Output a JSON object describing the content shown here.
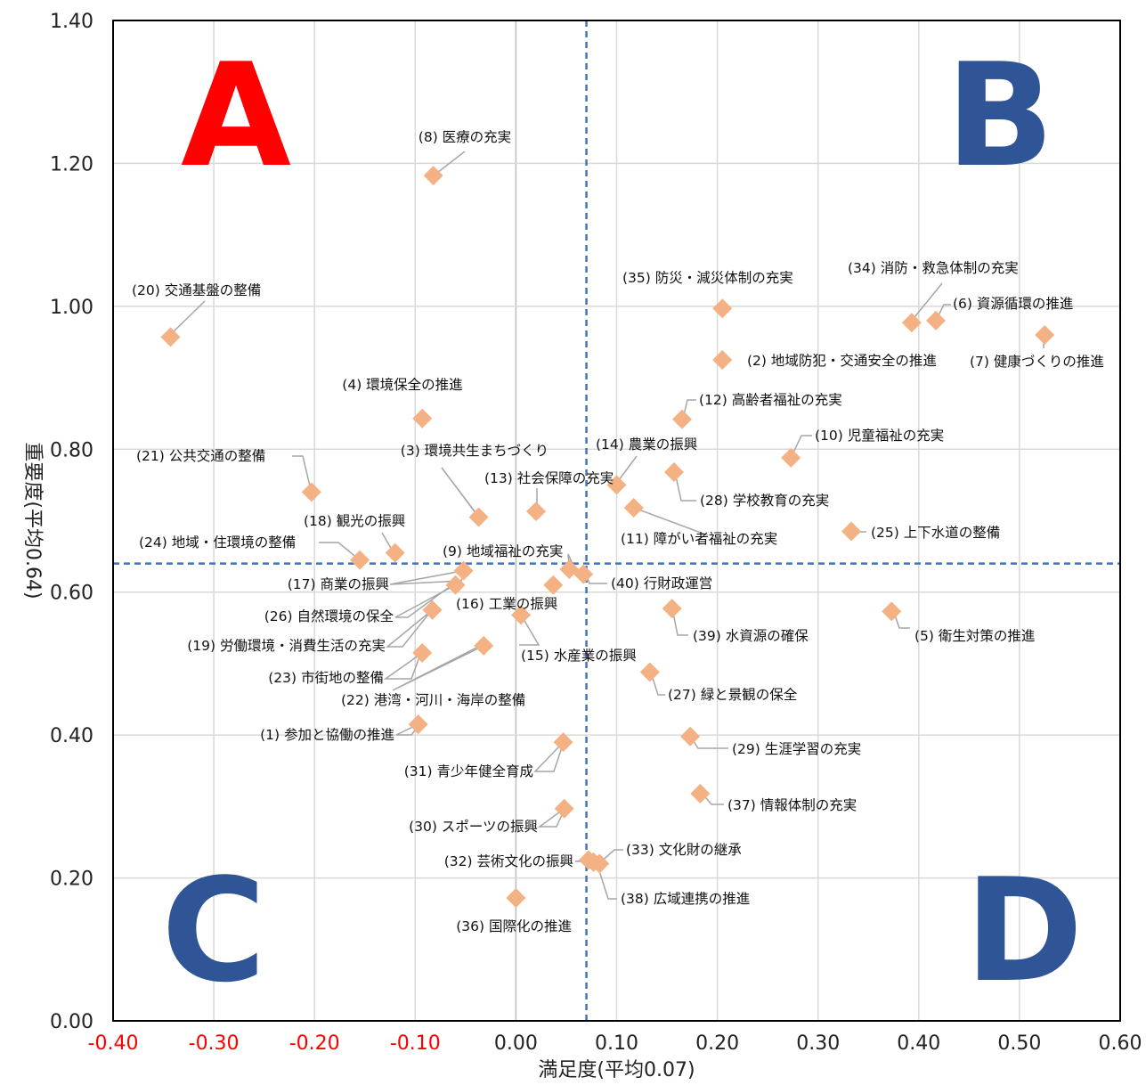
{
  "chart_data": {
    "type": "scatter",
    "title": "",
    "xlabel": "満足度(平均0.07)",
    "ylabel": "重要度(平均0.64)",
    "xlim": [
      -0.4,
      0.6
    ],
    "ylim": [
      0.0,
      1.4
    ],
    "x_ticks": [
      "-0.40",
      "-0.30",
      "-0.20",
      "-0.10",
      "0.00",
      "0.10",
      "0.20",
      "0.30",
      "0.40",
      "0.50",
      "0.60"
    ],
    "y_ticks": [
      "0.00",
      "0.20",
      "0.40",
      "0.60",
      "0.80",
      "1.00",
      "1.20",
      "1.40"
    ],
    "grid": true,
    "mean_x": 0.07,
    "mean_y": 0.64,
    "marker_color": "#f4b183",
    "mean_line_color": "#4472c4",
    "quadrants": [
      {
        "label": "A",
        "color": "#ff0000"
      },
      {
        "label": "B",
        "color": "#2f5597"
      },
      {
        "label": "C",
        "color": "#2f5597"
      },
      {
        "label": "D",
        "color": "#2f5597"
      }
    ],
    "points": [
      {
        "label": "(1) 参加と協働の推進",
        "x": -0.097,
        "y": 0.415
      },
      {
        "label": "(2) 地域防犯・交通安全の推進",
        "x": 0.205,
        "y": 0.925
      },
      {
        "label": "(3) 環境共生まちづくり",
        "x": -0.037,
        "y": 0.705
      },
      {
        "label": "(4) 環境保全の推進",
        "x": -0.093,
        "y": 0.843
      },
      {
        "label": "(5) 衛生対策の推進",
        "x": 0.373,
        "y": 0.573
      },
      {
        "label": "(6) 資源循環の推進",
        "x": 0.417,
        "y": 0.98
      },
      {
        "label": "(7) 健康づくりの推進",
        "x": 0.525,
        "y": 0.96
      },
      {
        "label": "(8) 医療の充実",
        "x": -0.082,
        "y": 1.183
      },
      {
        "label": "(9) 地域福祉の充実",
        "x": 0.053,
        "y": 0.632
      },
      {
        "label": "(10) 児童福祉の充実",
        "x": 0.273,
        "y": 0.788
      },
      {
        "label": "(11) 障がい者福祉の充実",
        "x": 0.117,
        "y": 0.718
      },
      {
        "label": "(12) 高齢者福祉の充実",
        "x": 0.165,
        "y": 0.842
      },
      {
        "label": "(13) 社会保障の充実",
        "x": 0.02,
        "y": 0.713
      },
      {
        "label": "(14) 農業の振興",
        "x": 0.1,
        "y": 0.75
      },
      {
        "label": "(15) 水産業の振興",
        "x": 0.005,
        "y": 0.568
      },
      {
        "label": "(16) 工業の振興",
        "x": 0.037,
        "y": 0.61
      },
      {
        "label": "(17) 商業の振興",
        "x": -0.052,
        "y": 0.63
      },
      {
        "label": "(18) 観光の振興",
        "x": -0.12,
        "y": 0.655
      },
      {
        "label": "(19) 労働環境・消費生活の充実",
        "x": -0.083,
        "y": 0.575
      },
      {
        "label": "(20) 交通基盤の整備",
        "x": -0.343,
        "y": 0.957
      },
      {
        "label": "(21) 公共交通の整備",
        "x": -0.203,
        "y": 0.74
      },
      {
        "label": "(22) 港湾・河川・海岸の整備",
        "x": -0.032,
        "y": 0.525
      },
      {
        "label": "(23) 市街地の整備",
        "x": -0.093,
        "y": 0.515
      },
      {
        "label": "(24) 地域・住環境の整備",
        "x": -0.155,
        "y": 0.645
      },
      {
        "label": "(25) 上下水道の整備",
        "x": 0.333,
        "y": 0.685
      },
      {
        "label": "(26) 自然環境の保全",
        "x": -0.06,
        "y": 0.61
      },
      {
        "label": "(27) 緑と景観の保全",
        "x": 0.133,
        "y": 0.488
      },
      {
        "label": "(28) 学校教育の充実",
        "x": 0.157,
        "y": 0.768
      },
      {
        "label": "(29) 生涯学習の充実",
        "x": 0.173,
        "y": 0.398
      },
      {
        "label": "(30) スポーツの振興",
        "x": 0.048,
        "y": 0.297
      },
      {
        "label": "(31) 青少年健全育成",
        "x": 0.047,
        "y": 0.39
      },
      {
        "label": "(32) 芸術文化の振興",
        "x": 0.072,
        "y": 0.225
      },
      {
        "label": "(33) 文化財の継承",
        "x": 0.083,
        "y": 0.22
      },
      {
        "label": "(34) 消防・救急体制の充実",
        "x": 0.393,
        "y": 0.977
      },
      {
        "label": "(35) 防災・減災体制の充実",
        "x": 0.205,
        "y": 0.997
      },
      {
        "label": "(36) 国際化の推進",
        "x": 0.0,
        "y": 0.172
      },
      {
        "label": "(37) 情報体制の充実",
        "x": 0.183,
        "y": 0.318
      },
      {
        "label": "(38) 広域連携の推進",
        "x": 0.077,
        "y": 0.222
      },
      {
        "label": "(39) 水資源の確保",
        "x": 0.155,
        "y": 0.577
      },
      {
        "label": "(40) 行財政運営",
        "x": 0.067,
        "y": 0.625
      }
    ]
  }
}
